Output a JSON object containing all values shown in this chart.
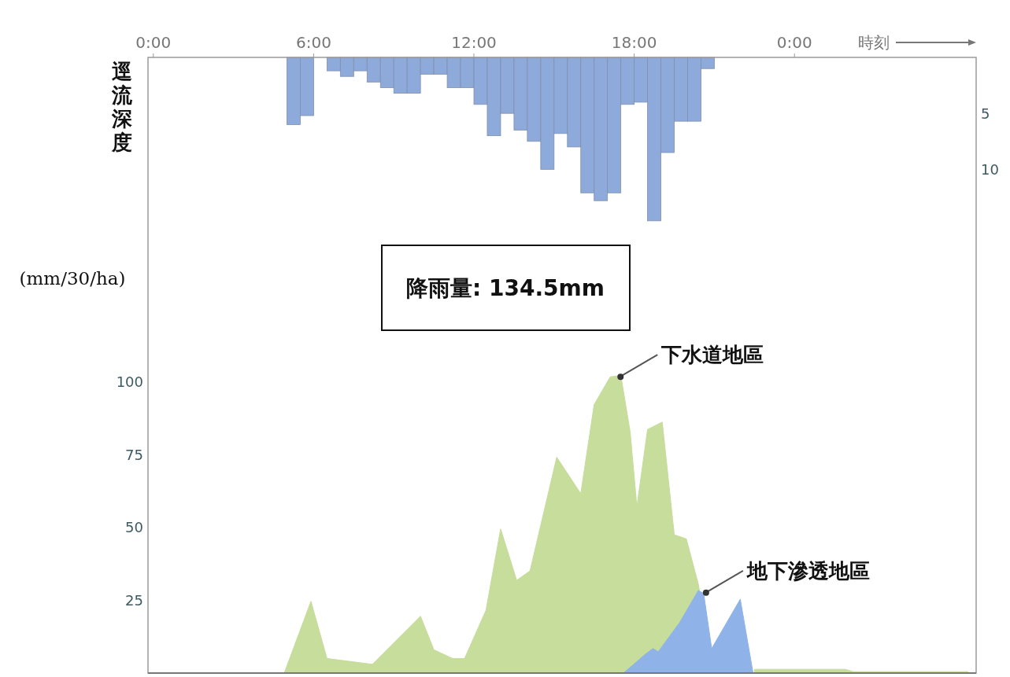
{
  "chart_data": {
    "type": "area",
    "xlabel": "時刻",
    "ylabel": "逕流深度",
    "xlim": [
      -0.2,
      30.8
    ],
    "xticks": [
      {
        "value": 0,
        "label": "0:00"
      },
      {
        "value": 6,
        "label": "6:00"
      },
      {
        "value": 12,
        "label": "12:00"
      },
      {
        "value": 18,
        "label": "18:00"
      },
      {
        "value": 24,
        "label": "0:00"
      }
    ],
    "ylim": [
      0,
      211
    ],
    "yticks": [
      25,
      50,
      75,
      100
    ],
    "y2lim": [
      55,
      0
    ],
    "y2ticks": [
      5,
      10
    ],
    "series": [
      {
        "color": "#c6dd9c",
        "x": [
          4.9,
          5.9,
          6.5,
          8.2,
          10.0,
          10.5,
          11.2,
          11.65,
          12.45,
          13.0,
          13.6,
          14.1,
          15.1,
          16.0,
          16.5,
          17.1,
          17.5,
          17.85,
          18.1,
          18.5,
          19.05,
          19.5,
          19.95,
          20.4,
          21.0,
          22.5,
          25.9,
          26.2,
          30.5
        ],
        "values": [
          0,
          24.6,
          5,
          3,
          19.5,
          8,
          5,
          5,
          21.5,
          49.4,
          31.8,
          35,
          74,
          61.5,
          92,
          101.5,
          102,
          82.5,
          57,
          83.5,
          86,
          47.4,
          46,
          30.5,
          null,
          1.3,
          1.3,
          0.5,
          0.5
        ]
      },
      {
        "color": "#8fb3e8",
        "x": [
          17.6,
          18.4,
          18.7,
          18.9,
          19.7,
          20.4,
          20.6,
          20.9,
          21.97,
          22.45
        ],
        "values": [
          0,
          6.3,
          8.4,
          7.3,
          17.3,
          28.3,
          27.3,
          8.4,
          25.3,
          0
        ]
      },
      {
        "type": "bar",
        "axis": "y2",
        "color": "#8eaadb",
        "x": [
          5.25,
          5.75,
          6.25,
          6.75,
          7.25,
          7.75,
          8.25,
          8.75,
          9.25,
          9.75,
          10.25,
          10.75,
          11.25,
          11.75,
          12.25,
          12.75,
          13.25,
          13.75,
          14.25,
          14.75,
          15.25,
          15.75,
          16.25,
          16.75,
          17.25,
          17.75,
          18.25,
          18.75,
          19.25,
          19.75,
          20.25,
          20.75
        ],
        "values": [
          6.0,
          5.2,
          0,
          1.2,
          1.7,
          1.2,
          2.2,
          2.7,
          3.2,
          3.2,
          1.5,
          1.5,
          2.7,
          2.7,
          4.2,
          7.0,
          5.0,
          6.5,
          7.5,
          10.0,
          6.8,
          8.0,
          12.1,
          12.8,
          12.1,
          4.2,
          4.0,
          14.6,
          8.5,
          5.7,
          5.7,
          1.0
        ]
      }
    ],
    "annotations": [
      "降雨量: 134.5mm",
      "(mm/30/ha)",
      {
        "text": "下水道地區",
        "x": 17.4,
        "y": 101
      },
      {
        "text": "地下滲透地區",
        "x": 20.6,
        "y": 27
      }
    ]
  }
}
